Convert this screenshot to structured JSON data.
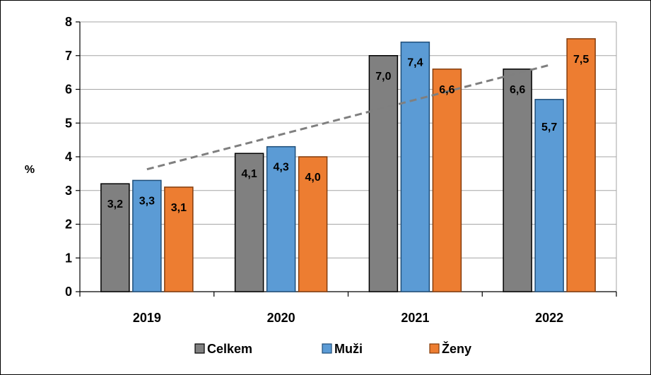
{
  "chart_data": {
    "type": "bar",
    "ylabel": "%",
    "ylim": [
      0,
      8
    ],
    "yticks": [
      "0",
      "1",
      "2",
      "3",
      "4",
      "5",
      "6",
      "7",
      "8"
    ],
    "grid": true,
    "legend_position": "bottom",
    "categories": [
      "2019",
      "2020",
      "2021",
      "2022"
    ],
    "series": [
      {
        "name": "Celkem",
        "color": "#808080",
        "values": [
          3.2,
          4.1,
          7.0,
          6.6
        ],
        "labels": [
          "3,2",
          "4,1",
          "7,0",
          "6,6"
        ]
      },
      {
        "name": "Muži",
        "color": "#5B9BD5",
        "values": [
          3.3,
          4.3,
          7.4,
          5.7
        ],
        "labels": [
          "3,3",
          "4,3",
          "7,4",
          "5,7"
        ]
      },
      {
        "name": "Ženy",
        "color": "#ED7D31",
        "values": [
          3.1,
          4.0,
          6.6,
          7.5
        ],
        "labels": [
          "3,1",
          "4,0",
          "6,6",
          "7,5"
        ]
      }
    ],
    "trendline": {
      "type": "linear",
      "style": "dashed",
      "color": "#7F7F7F",
      "series": "Muži"
    }
  }
}
